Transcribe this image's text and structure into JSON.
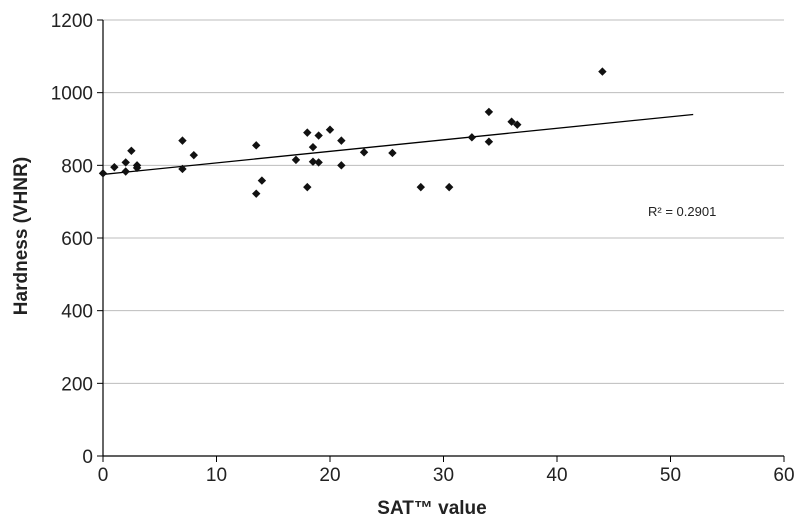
{
  "chart_data": {
    "type": "scatter",
    "title": "",
    "xlabel": "SAT™ value",
    "ylabel": "Hardness (VHNR)",
    "xlim": [
      0,
      60
    ],
    "ylim": [
      0,
      1200
    ],
    "xticks": [
      0,
      10,
      20,
      30,
      40,
      50,
      60
    ],
    "yticks": [
      0,
      200,
      400,
      600,
      800,
      1000,
      1200
    ],
    "grid": "horizontal",
    "legend": "none",
    "marker_color": "#111111",
    "points": [
      {
        "x": 0,
        "y": 778
      },
      {
        "x": 1,
        "y": 795
      },
      {
        "x": 2,
        "y": 808
      },
      {
        "x": 2,
        "y": 783
      },
      {
        "x": 2.5,
        "y": 840
      },
      {
        "x": 3,
        "y": 800
      },
      {
        "x": 3,
        "y": 793
      },
      {
        "x": 7,
        "y": 868
      },
      {
        "x": 7,
        "y": 790
      },
      {
        "x": 8,
        "y": 828
      },
      {
        "x": 13.5,
        "y": 855
      },
      {
        "x": 13.5,
        "y": 722
      },
      {
        "x": 14,
        "y": 758
      },
      {
        "x": 17,
        "y": 815
      },
      {
        "x": 18,
        "y": 890
      },
      {
        "x": 18,
        "y": 740
      },
      {
        "x": 18.5,
        "y": 850
      },
      {
        "x": 18.5,
        "y": 810
      },
      {
        "x": 19,
        "y": 882
      },
      {
        "x": 19,
        "y": 808
      },
      {
        "x": 20,
        "y": 898
      },
      {
        "x": 21,
        "y": 868
      },
      {
        "x": 21,
        "y": 800
      },
      {
        "x": 23,
        "y": 836
      },
      {
        "x": 25.5,
        "y": 834
      },
      {
        "x": 28,
        "y": 740
      },
      {
        "x": 30.5,
        "y": 740
      },
      {
        "x": 32.5,
        "y": 877
      },
      {
        "x": 34,
        "y": 947
      },
      {
        "x": 34,
        "y": 865
      },
      {
        "x": 36,
        "y": 920
      },
      {
        "x": 36.5,
        "y": 912
      },
      {
        "x": 44,
        "y": 1058
      }
    ],
    "trendline": {
      "type": "linear",
      "x_start": 0,
      "y_start": 775,
      "x_end": 52,
      "y_end": 940
    },
    "annotation": "R² = 0.2901"
  }
}
